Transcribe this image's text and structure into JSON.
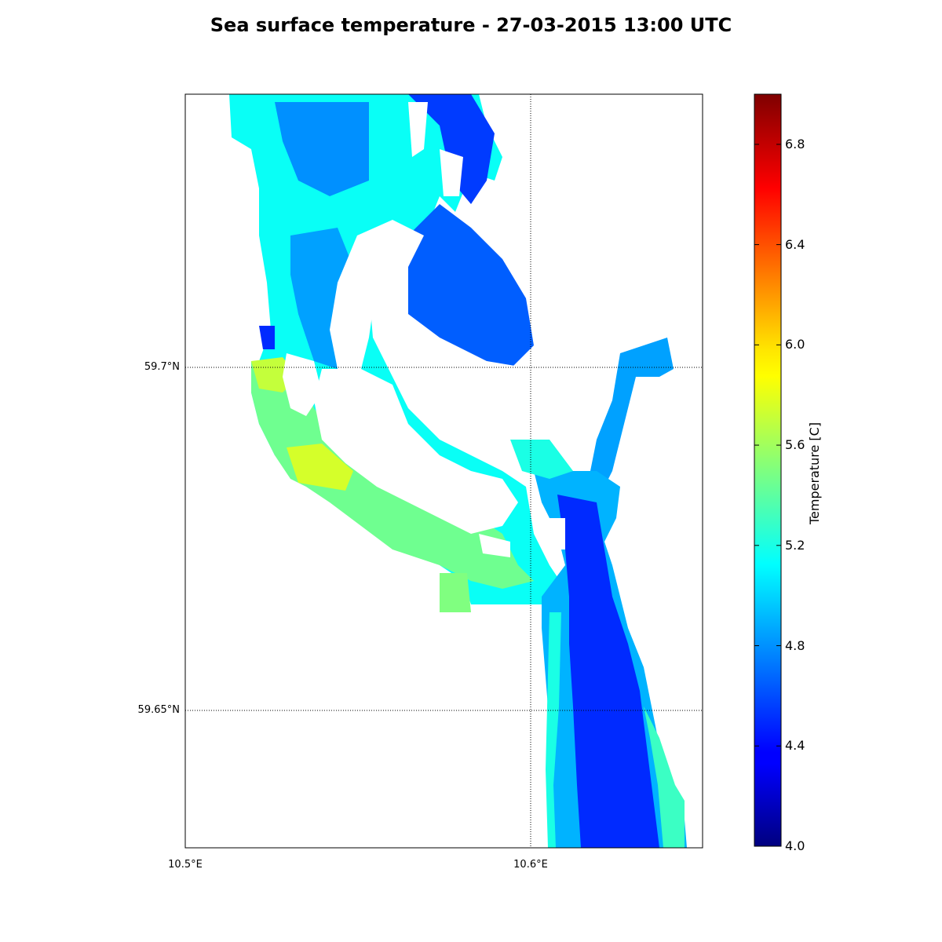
{
  "title": "Sea surface temperature - 27-03-2015 13:00 UTC",
  "map": {
    "lon_range": [
      10.5,
      10.65
    ],
    "lat_range": [
      59.63,
      59.74
    ],
    "lat_lines": [
      {
        "value": 59.7,
        "label": "59.7°N"
      },
      {
        "value": 59.65,
        "label": "59.65°N"
      }
    ],
    "lon_lines": [
      {
        "value": 10.5,
        "label": "10.5°E",
        "draw_line": false
      },
      {
        "value": 10.6,
        "label": "10.6°E",
        "draw_line": true
      }
    ],
    "grid_style": "dotted"
  },
  "colorbar": {
    "label": "Temperature [C]",
    "min": 4.0,
    "max": 7.0,
    "colormap": "jet",
    "ticks": [
      "4.0",
      "4.4",
      "4.8",
      "5.2",
      "5.6",
      "6.0",
      "6.4",
      "6.8"
    ]
  }
}
